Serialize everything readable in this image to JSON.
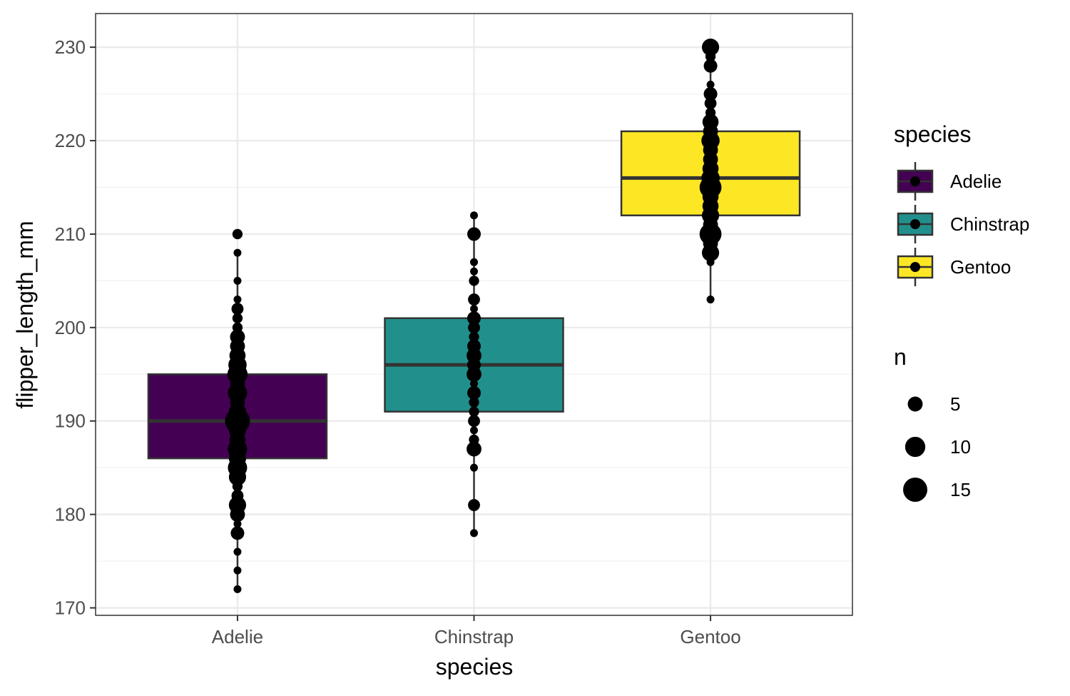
{
  "chart_data": {
    "type": "boxplot",
    "xlabel": "species",
    "ylabel": "flipper_length_mm",
    "categories": [
      "Adelie",
      "Chinstrap",
      "Gentoo"
    ],
    "ylim": [
      169.2,
      233.6
    ],
    "yticks": [
      170,
      180,
      190,
      200,
      210,
      220,
      230
    ],
    "grid": true,
    "legend_placement": "right",
    "boxes": [
      {
        "species": "Adelie",
        "color": "#440154",
        "whisker_low": 172,
        "q1": 186,
        "median": 190,
        "q3": 195,
        "whisker_high": 208,
        "outliers": [
          210
        ]
      },
      {
        "species": "Chinstrap",
        "color": "#21908C",
        "whisker_low": 178,
        "q1": 191,
        "median": 196,
        "q3": 201,
        "whisker_high": 212,
        "outliers": []
      },
      {
        "species": "Gentoo",
        "color": "#FDE725",
        "whisker_low": 203,
        "q1": 212,
        "median": 216,
        "q3": 221,
        "whisker_high": 230,
        "outliers": []
      }
    ],
    "points": [
      {
        "species": "Adelie",
        "y": 172,
        "n": 1
      },
      {
        "species": "Adelie",
        "y": 174,
        "n": 1
      },
      {
        "species": "Adelie",
        "y": 176,
        "n": 1
      },
      {
        "species": "Adelie",
        "y": 178,
        "n": 4
      },
      {
        "species": "Adelie",
        "y": 179,
        "n": 1
      },
      {
        "species": "Adelie",
        "y": 180,
        "n": 5
      },
      {
        "species": "Adelie",
        "y": 181,
        "n": 7
      },
      {
        "species": "Adelie",
        "y": 182,
        "n": 3
      },
      {
        "species": "Adelie",
        "y": 183,
        "n": 2
      },
      {
        "species": "Adelie",
        "y": 184,
        "n": 7
      },
      {
        "species": "Adelie",
        "y": 185,
        "n": 9
      },
      {
        "species": "Adelie",
        "y": 186,
        "n": 7
      },
      {
        "species": "Adelie",
        "y": 187,
        "n": 9
      },
      {
        "species": "Adelie",
        "y": 188,
        "n": 6
      },
      {
        "species": "Adelie",
        "y": 189,
        "n": 7
      },
      {
        "species": "Adelie",
        "y": 190,
        "n": 16
      },
      {
        "species": "Adelie",
        "y": 191,
        "n": 7
      },
      {
        "species": "Adelie",
        "y": 192,
        "n": 5
      },
      {
        "species": "Adelie",
        "y": 193,
        "n": 9
      },
      {
        "species": "Adelie",
        "y": 194,
        "n": 5
      },
      {
        "species": "Adelie",
        "y": 195,
        "n": 10
      },
      {
        "species": "Adelie",
        "y": 196,
        "n": 8
      },
      {
        "species": "Adelie",
        "y": 197,
        "n": 6
      },
      {
        "species": "Adelie",
        "y": 198,
        "n": 5
      },
      {
        "species": "Adelie",
        "y": 199,
        "n": 5
      },
      {
        "species": "Adelie",
        "y": 200,
        "n": 2
      },
      {
        "species": "Adelie",
        "y": 201,
        "n": 2
      },
      {
        "species": "Adelie",
        "y": 202,
        "n": 3
      },
      {
        "species": "Adelie",
        "y": 203,
        "n": 1
      },
      {
        "species": "Adelie",
        "y": 205,
        "n": 1
      },
      {
        "species": "Adelie",
        "y": 208,
        "n": 1
      },
      {
        "species": "Adelie",
        "y": 210,
        "n": 2
      },
      {
        "species": "Chinstrap",
        "y": 178,
        "n": 1
      },
      {
        "species": "Chinstrap",
        "y": 181,
        "n": 3
      },
      {
        "species": "Chinstrap",
        "y": 185,
        "n": 1
      },
      {
        "species": "Chinstrap",
        "y": 187,
        "n": 5
      },
      {
        "species": "Chinstrap",
        "y": 188,
        "n": 2
      },
      {
        "species": "Chinstrap",
        "y": 189,
        "n": 1
      },
      {
        "species": "Chinstrap",
        "y": 190,
        "n": 3
      },
      {
        "species": "Chinstrap",
        "y": 191,
        "n": 2
      },
      {
        "species": "Chinstrap",
        "y": 192,
        "n": 2
      },
      {
        "species": "Chinstrap",
        "y": 193,
        "n": 4
      },
      {
        "species": "Chinstrap",
        "y": 194,
        "n": 1
      },
      {
        "species": "Chinstrap",
        "y": 195,
        "n": 5
      },
      {
        "species": "Chinstrap",
        "y": 196,
        "n": 4
      },
      {
        "species": "Chinstrap",
        "y": 197,
        "n": 5
      },
      {
        "species": "Chinstrap",
        "y": 198,
        "n": 4
      },
      {
        "species": "Chinstrap",
        "y": 199,
        "n": 2
      },
      {
        "species": "Chinstrap",
        "y": 200,
        "n": 3
      },
      {
        "species": "Chinstrap",
        "y": 201,
        "n": 4
      },
      {
        "species": "Chinstrap",
        "y": 202,
        "n": 1
      },
      {
        "species": "Chinstrap",
        "y": 203,
        "n": 3
      },
      {
        "species": "Chinstrap",
        "y": 205,
        "n": 2
      },
      {
        "species": "Chinstrap",
        "y": 206,
        "n": 1
      },
      {
        "species": "Chinstrap",
        "y": 207,
        "n": 1
      },
      {
        "species": "Chinstrap",
        "y": 210,
        "n": 4
      },
      {
        "species": "Chinstrap",
        "y": 212,
        "n": 1
      },
      {
        "species": "Gentoo",
        "y": 203,
        "n": 1
      },
      {
        "species": "Gentoo",
        "y": 207,
        "n": 1
      },
      {
        "species": "Gentoo",
        "y": 208,
        "n": 7
      },
      {
        "species": "Gentoo",
        "y": 209,
        "n": 5
      },
      {
        "species": "Gentoo",
        "y": 210,
        "n": 12
      },
      {
        "species": "Gentoo",
        "y": 211,
        "n": 5
      },
      {
        "species": "Gentoo",
        "y": 212,
        "n": 7
      },
      {
        "species": "Gentoo",
        "y": 213,
        "n": 6
      },
      {
        "species": "Gentoo",
        "y": 214,
        "n": 6
      },
      {
        "species": "Gentoo",
        "y": 215,
        "n": 12
      },
      {
        "species": "Gentoo",
        "y": 216,
        "n": 8
      },
      {
        "species": "Gentoo",
        "y": 217,
        "n": 6
      },
      {
        "species": "Gentoo",
        "y": 218,
        "n": 5
      },
      {
        "species": "Gentoo",
        "y": 219,
        "n": 5
      },
      {
        "species": "Gentoo",
        "y": 220,
        "n": 8
      },
      {
        "species": "Gentoo",
        "y": 221,
        "n": 5
      },
      {
        "species": "Gentoo",
        "y": 222,
        "n": 6
      },
      {
        "species": "Gentoo",
        "y": 223,
        "n": 2
      },
      {
        "species": "Gentoo",
        "y": 224,
        "n": 3
      },
      {
        "species": "Gentoo",
        "y": 225,
        "n": 4
      },
      {
        "species": "Gentoo",
        "y": 226,
        "n": 1
      },
      {
        "species": "Gentoo",
        "y": 228,
        "n": 4
      },
      {
        "species": "Gentoo",
        "y": 229,
        "n": 2
      },
      {
        "species": "Gentoo",
        "y": 230,
        "n": 7
      }
    ],
    "size_scale": {
      "n_min": 1,
      "n_max": 16,
      "r_min": 5.5,
      "r_max": 17.5
    },
    "legend": {
      "fill": {
        "title": "species",
        "items": [
          {
            "label": "Adelie",
            "color": "#440154"
          },
          {
            "label": "Chinstrap",
            "color": "#21908C"
          },
          {
            "label": "Gentoo",
            "color": "#FDE725"
          }
        ]
      },
      "size": {
        "title": "n",
        "items": [
          {
            "label": "5",
            "n": 5
          },
          {
            "label": "10",
            "n": 10
          },
          {
            "label": "15",
            "n": 15
          }
        ]
      }
    },
    "colors": {
      "box_border": "#333333",
      "point": "#000000",
      "grid_major": "#ebebeb",
      "grid_minor": "#f2f2f2",
      "panel_border": "#333333"
    }
  }
}
